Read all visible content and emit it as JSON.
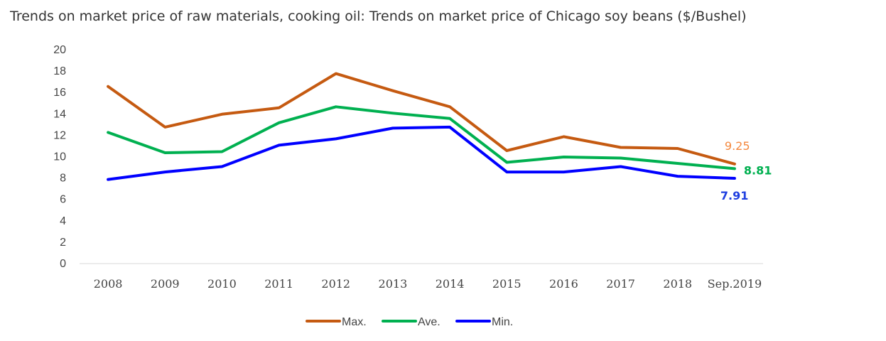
{
  "title": "Trends on market price of raw materials, cooking oil: Trends on market price of Chicago soy beans ($/Bushel)",
  "chart_data": {
    "type": "line",
    "title": "Trends on market price of raw materials, cooking oil: Trends on market price of Chicago soy beans ($/Bushel)",
    "xlabel": "",
    "ylabel": "",
    "categories": [
      "2008",
      "2009",
      "2010",
      "2011",
      "2012",
      "2013",
      "2014",
      "2015",
      "2016",
      "2017",
      "2018",
      "Sep.2019"
    ],
    "ylim": [
      0,
      20
    ],
    "yticks": [
      "0",
      "2",
      "4",
      "6",
      "8",
      "10",
      "12",
      "14",
      "16",
      "18",
      "20"
    ],
    "grid": false,
    "legend_position": "bottom",
    "series": [
      {
        "name": "Max.",
        "color": "#C55A11",
        "values": [
          16.5,
          12.7,
          13.9,
          14.5,
          17.7,
          16.1,
          14.6,
          10.5,
          11.8,
          10.8,
          10.7,
          9.25
        ],
        "end_label": "9.25",
        "end_label_color": "#F4883E"
      },
      {
        "name": "Ave.",
        "color": "#00B050",
        "values": [
          12.2,
          10.3,
          10.4,
          13.1,
          14.6,
          14.0,
          13.5,
          9.4,
          9.9,
          9.8,
          9.3,
          8.81
        ],
        "end_label": "8.81",
        "end_label_color": "#00B050"
      },
      {
        "name": "Min.",
        "color": "#0000FF",
        "values": [
          7.8,
          8.5,
          9.0,
          11.0,
          11.6,
          12.6,
          12.7,
          8.5,
          8.5,
          9.0,
          8.1,
          7.91
        ],
        "end_label": "7.91",
        "end_label_color": "#1F3FE0"
      }
    ]
  }
}
